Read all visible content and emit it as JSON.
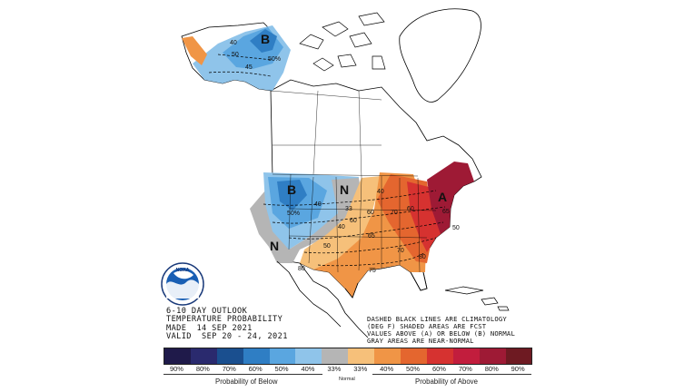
{
  "title_lines": [
    "6-10 DAY OUTLOOK",
    "TEMPERATURE PROBABILITY",
    "MADE  14 SEP 2021",
    "VALID  SEP 20 - 24, 2021"
  ],
  "note_lines": [
    "DASHED BLACK LINES ARE CLIMATOLOGY",
    "(DEG F) SHADED AREAS ARE FCST",
    "VALUES ABOVE (A) OR BELOW (B) NORMAL",
    "GRAY AREAS ARE NEAR-NORMAL"
  ],
  "logo_text": "NOAA",
  "region_labels": [
    {
      "text": "B",
      "kind": "below"
    },
    {
      "text": "B",
      "kind": "below"
    },
    {
      "text": "N",
      "kind": "normal"
    },
    {
      "text": "N",
      "kind": "normal"
    },
    {
      "text": "A",
      "kind": "above"
    }
  ],
  "contour_labels": [
    "40",
    "50",
    "45",
    "50%",
    "40",
    "50%",
    "33",
    "60",
    "50",
    "40",
    "40",
    "70",
    "60",
    "65",
    "60",
    "65",
    "70",
    "75",
    "80",
    "50",
    "80"
  ],
  "legend": {
    "colors": [
      "#1f1a4a",
      "#2a2a6e",
      "#1a4f8f",
      "#2f7ec4",
      "#5aa6e0",
      "#8fc4ea",
      "#b5b5b5",
      "#f6c07a",
      "#f09546",
      "#e4662f",
      "#d63230",
      "#c21d3d",
      "#9e1a35",
      "#6e1a22"
    ],
    "labels": [
      "90%",
      "80%",
      "70%",
      "60%",
      "50%",
      "40%",
      "33%",
      "33%",
      "40%",
      "50%",
      "60%",
      "70%",
      "80%",
      "90%"
    ],
    "below_label": "Probability of Below",
    "normal_label": "Normal",
    "above_label": "Probability of Above"
  }
}
